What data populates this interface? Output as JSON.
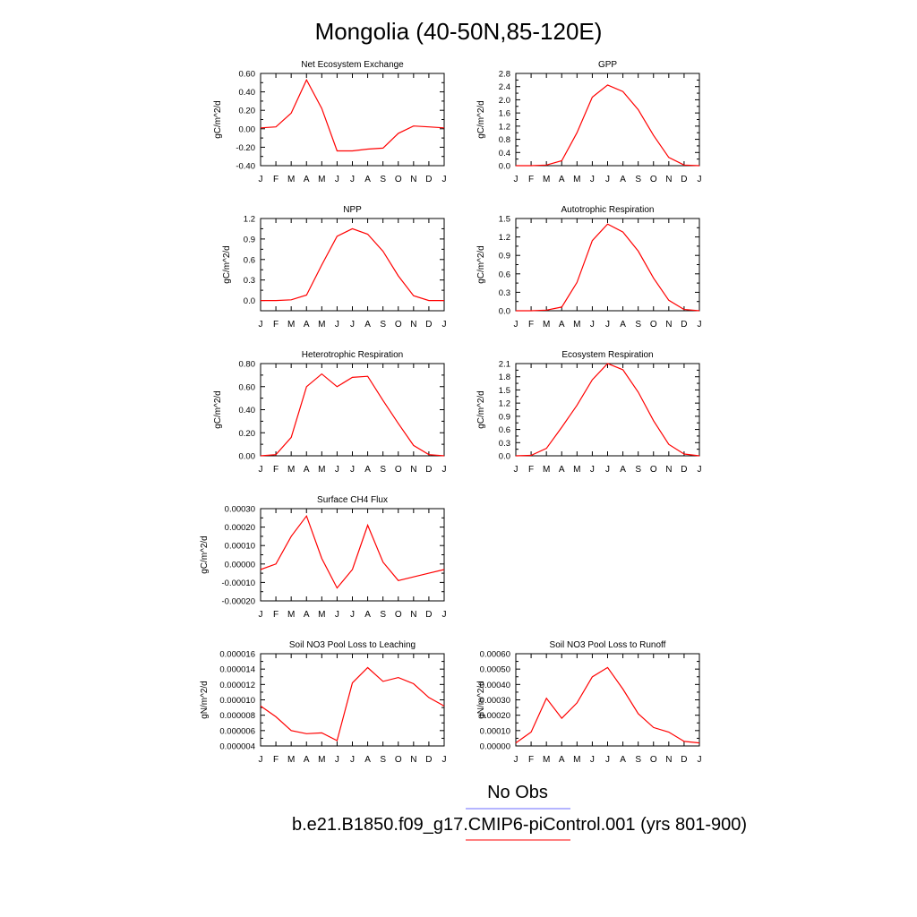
{
  "page": {
    "title": "Mongolia (40-50N,85-120E)",
    "legend": {
      "obs_label": "No Obs",
      "model_label": "b.e21.B1850.f09_g17.CMIP6-piControl.001 (yrs 801-900)",
      "obs_color": "#6b6bff",
      "model_color": "#ff0000"
    }
  },
  "chart_data": [
    {
      "type": "line",
      "title": "Net Ecosystem Exchange",
      "ylabel": "gC/m^2/d",
      "categories": [
        "J",
        "F",
        "M",
        "A",
        "M",
        "J",
        "J",
        "A",
        "S",
        "O",
        "N",
        "D",
        "J"
      ],
      "ylim": [
        -0.4,
        0.6
      ],
      "yticks": [
        -0.4,
        -0.2,
        0.0,
        0.2,
        0.4,
        0.6
      ],
      "yticklabels": [
        "-0.40",
        "-0.20",
        "0.00",
        "0.20",
        "0.40",
        "0.60"
      ],
      "series": [
        {
          "values": [
            0.01,
            0.02,
            0.17,
            0.53,
            0.22,
            -0.24,
            -0.24,
            -0.22,
            -0.21,
            -0.05,
            0.03,
            0.02,
            0.01
          ],
          "color": "#ff0000"
        }
      ]
    },
    {
      "type": "line",
      "title": "GPP",
      "ylabel": "gC/m^2/d",
      "categories": [
        "J",
        "F",
        "M",
        "A",
        "M",
        "J",
        "J",
        "A",
        "S",
        "O",
        "N",
        "D",
        "J"
      ],
      "ylim": [
        0,
        2.8
      ],
      "yticks": [
        0,
        0.4,
        0.8,
        1.2,
        1.6,
        2.0,
        2.4,
        2.8
      ],
      "yticklabels": [
        "0.0",
        "0.4",
        "0.8",
        "1.2",
        "1.6",
        "2.0",
        "2.4",
        "2.8"
      ],
      "series": [
        {
          "values": [
            0.0,
            0.0,
            0.02,
            0.15,
            1.0,
            2.08,
            2.45,
            2.25,
            1.7,
            0.92,
            0.25,
            0.02,
            0.0
          ],
          "color": "#ff0000"
        }
      ]
    },
    {
      "type": "line",
      "title": "NPP",
      "ylabel": "gC/m^2/d",
      "categories": [
        "J",
        "F",
        "M",
        "A",
        "M",
        "J",
        "J",
        "A",
        "S",
        "O",
        "N",
        "D",
        "J"
      ],
      "ylim": [
        -0.15,
        1.2
      ],
      "yticks": [
        0.0,
        0.3,
        0.6,
        0.9,
        1.2
      ],
      "yticklabels": [
        "0.0",
        "0.3",
        "0.6",
        "0.9",
        "1.2"
      ],
      "series": [
        {
          "values": [
            0.0,
            0.0,
            0.01,
            0.08,
            0.52,
            0.94,
            1.05,
            0.97,
            0.72,
            0.36,
            0.07,
            0.0,
            0.0
          ],
          "color": "#ff0000"
        }
      ]
    },
    {
      "type": "line",
      "title": "Autotrophic Respiration",
      "ylabel": "gC/m^2/d",
      "categories": [
        "J",
        "F",
        "M",
        "A",
        "M",
        "J",
        "J",
        "A",
        "S",
        "O",
        "N",
        "D",
        "J"
      ],
      "ylim": [
        0,
        1.5
      ],
      "yticks": [
        0.0,
        0.3,
        0.6,
        0.9,
        1.2,
        1.5
      ],
      "yticklabels": [
        "0.0",
        "0.3",
        "0.6",
        "0.9",
        "1.2",
        "1.5"
      ],
      "series": [
        {
          "values": [
            0.0,
            0.0,
            0.01,
            0.06,
            0.46,
            1.14,
            1.41,
            1.28,
            0.97,
            0.53,
            0.17,
            0.02,
            0.0
          ],
          "color": "#ff0000"
        }
      ]
    },
    {
      "type": "line",
      "title": "Heterotrophic Respiration",
      "ylabel": "gC/m^2/d",
      "categories": [
        "J",
        "F",
        "M",
        "A",
        "M",
        "J",
        "J",
        "A",
        "S",
        "O",
        "N",
        "D",
        "J"
      ],
      "ylim": [
        0,
        0.8
      ],
      "yticks": [
        0.0,
        0.2,
        0.4,
        0.6,
        0.8
      ],
      "yticklabels": [
        "0.00",
        "0.20",
        "0.40",
        "0.60",
        "0.80"
      ],
      "series": [
        {
          "values": [
            0.0,
            0.01,
            0.16,
            0.6,
            0.71,
            0.6,
            0.68,
            0.69,
            0.48,
            0.28,
            0.09,
            0.01,
            0.0
          ],
          "color": "#ff0000"
        }
      ]
    },
    {
      "type": "line",
      "title": "Ecosystem Respiration",
      "ylabel": "gC/m^2/d",
      "categories": [
        "J",
        "F",
        "M",
        "A",
        "M",
        "J",
        "J",
        "A",
        "S",
        "O",
        "N",
        "D",
        "J"
      ],
      "ylim": [
        0,
        2.1
      ],
      "yticks": [
        0.0,
        0.3,
        0.6,
        0.9,
        1.2,
        1.5,
        1.8,
        2.1
      ],
      "yticklabels": [
        "0.0",
        "0.3",
        "0.6",
        "0.9",
        "1.2",
        "1.5",
        "1.8",
        "2.1"
      ],
      "series": [
        {
          "values": [
            0.0,
            0.01,
            0.17,
            0.65,
            1.15,
            1.73,
            2.1,
            1.96,
            1.45,
            0.8,
            0.26,
            0.04,
            0.0
          ],
          "color": "#ff0000"
        }
      ]
    },
    {
      "type": "line",
      "title": "Surface CH4 Flux",
      "ylabel": "gC/m^2/d",
      "categories": [
        "J",
        "F",
        "M",
        "A",
        "M",
        "J",
        "J",
        "A",
        "S",
        "O",
        "N",
        "D",
        "J"
      ],
      "ylim": [
        -0.0002,
        0.0003
      ],
      "yticks": [
        -0.0002,
        -0.0001,
        0.0,
        0.0001,
        0.0002,
        0.0003
      ],
      "yticklabels": [
        "-0.00020",
        "-0.00010",
        "0.00000",
        "0.00010",
        "0.00020",
        "0.00030"
      ],
      "series": [
        {
          "values": [
            -3e-05,
            0.0,
            0.00015,
            0.00026,
            3e-05,
            -0.00013,
            -3e-05,
            0.00021,
            1e-05,
            -9e-05,
            -7e-05,
            -5e-05,
            -3e-05
          ],
          "color": "#ff0000"
        }
      ]
    },
    {
      "type": "line",
      "title": "Soil NO3 Pool Loss to Leaching",
      "ylabel": "gN/m^2/d",
      "categories": [
        "J",
        "F",
        "M",
        "A",
        "M",
        "J",
        "J",
        "A",
        "S",
        "O",
        "N",
        "D",
        "J"
      ],
      "ylim": [
        4e-06,
        1.6e-05
      ],
      "yticks": [
        4e-06,
        6e-06,
        8e-06,
        1e-05,
        1.2e-05,
        1.4e-05,
        1.6e-05
      ],
      "yticklabels": [
        "0.000004",
        "0.000006",
        "0.000008",
        "0.000010",
        "0.000012",
        "0.000014",
        "0.000016"
      ],
      "series": [
        {
          "values": [
            9.2e-06,
            7.8e-06,
            6e-06,
            5.6e-06,
            5.7e-06,
            4.7e-06,
            1.22e-05,
            1.42e-05,
            1.24e-05,
            1.29e-05,
            1.21e-05,
            1.03e-05,
            9.2e-06
          ],
          "color": "#ff0000"
        }
      ]
    },
    {
      "type": "line",
      "title": "Soil NO3 Pool Loss to Runoff",
      "ylabel": "gN/m^2/d",
      "categories": [
        "J",
        "F",
        "M",
        "A",
        "M",
        "J",
        "J",
        "A",
        "S",
        "O",
        "N",
        "D",
        "J"
      ],
      "ylim": [
        0,
        0.0006
      ],
      "yticks": [
        0,
        0.0001,
        0.0002,
        0.0003,
        0.0004,
        0.0005,
        0.0006
      ],
      "yticklabels": [
        "0.00000",
        "0.00010",
        "0.00020",
        "0.00030",
        "0.00040",
        "0.00050",
        "0.00060"
      ],
      "series": [
        {
          "values": [
            2e-05,
            9e-05,
            0.00031,
            0.00018,
            0.00028,
            0.00045,
            0.00051,
            0.00037,
            0.00021,
            0.00012,
            9e-05,
            3e-05,
            2e-05
          ],
          "color": "#ff0000"
        }
      ]
    }
  ]
}
